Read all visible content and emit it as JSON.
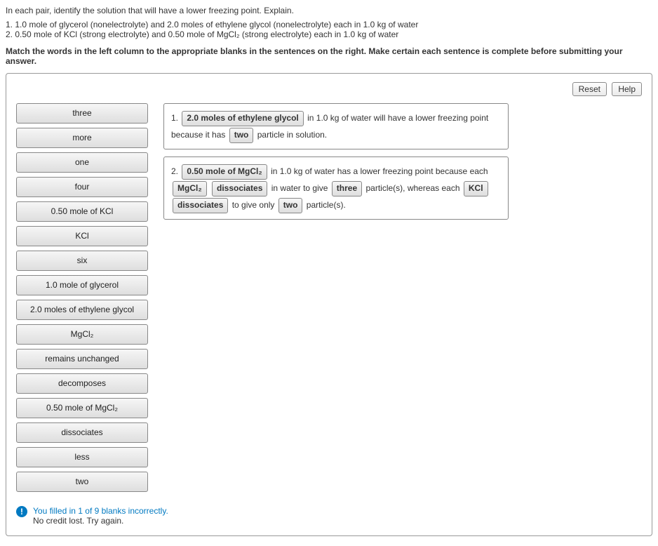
{
  "question": {
    "intro": "In each pair, identify the solution that will have a lower freezing point. Explain.",
    "item1": "1. 1.0 mole of glycerol (nonelectrolyte) and 2.0 moles of ethylene glycol (nonelectrolyte) each in 1.0 kg of water",
    "item2": "2. 0.50 mole of KCl (strong electrolyte) and 0.50 mole of MgCl₂ (strong electrolyte) each in 1.0 kg of water",
    "instruction": "Match the words in the left column to the appropriate blanks in the sentences on the right. Make certain each sentence is complete before submitting your answer."
  },
  "buttons": {
    "reset": "Reset",
    "help": "Help"
  },
  "wordbank": {
    "items": [
      "three",
      "more",
      "one",
      "four",
      "0.50 mole of KCl",
      "KCl",
      "six",
      "1.0 mole of glycerol",
      "2.0 moles of ethylene glycol",
      "MgCl₂",
      "remains unchanged",
      "decomposes",
      "0.50 mole of MgCl₂",
      "dissociates",
      "less",
      "two"
    ]
  },
  "sentences": {
    "s1": {
      "num": "1.",
      "slot1": "2.0 moles of ethylene glycol",
      "text1": " in 1.0 kg of water will have a lower freezing point because it has ",
      "slot2": "two",
      "text2": " particle in solution."
    },
    "s2": {
      "num": "2.",
      "slot1": "0.50 mole of MgCl₂",
      "text1": " in 1.0 kg of water has a lower freezing point because each ",
      "slot2": "MgCl₂",
      "slot3": "dissociates",
      "text2": " in water to give ",
      "slot4": "three",
      "text3": " particle(s), whereas each ",
      "slot5": "KCl",
      "slot6": "dissociates",
      "text4": " to give only ",
      "slot7": "two",
      "text5": " particle(s)."
    }
  },
  "feedback": {
    "line1": "You filled in 1 of 9 blanks incorrectly.",
    "line2": "No credit lost. Try again."
  },
  "colors": {
    "border": "#888888",
    "panel_border": "#999999",
    "feedback_blue": "#0079c1",
    "button_border": "#8a8a8a"
  }
}
